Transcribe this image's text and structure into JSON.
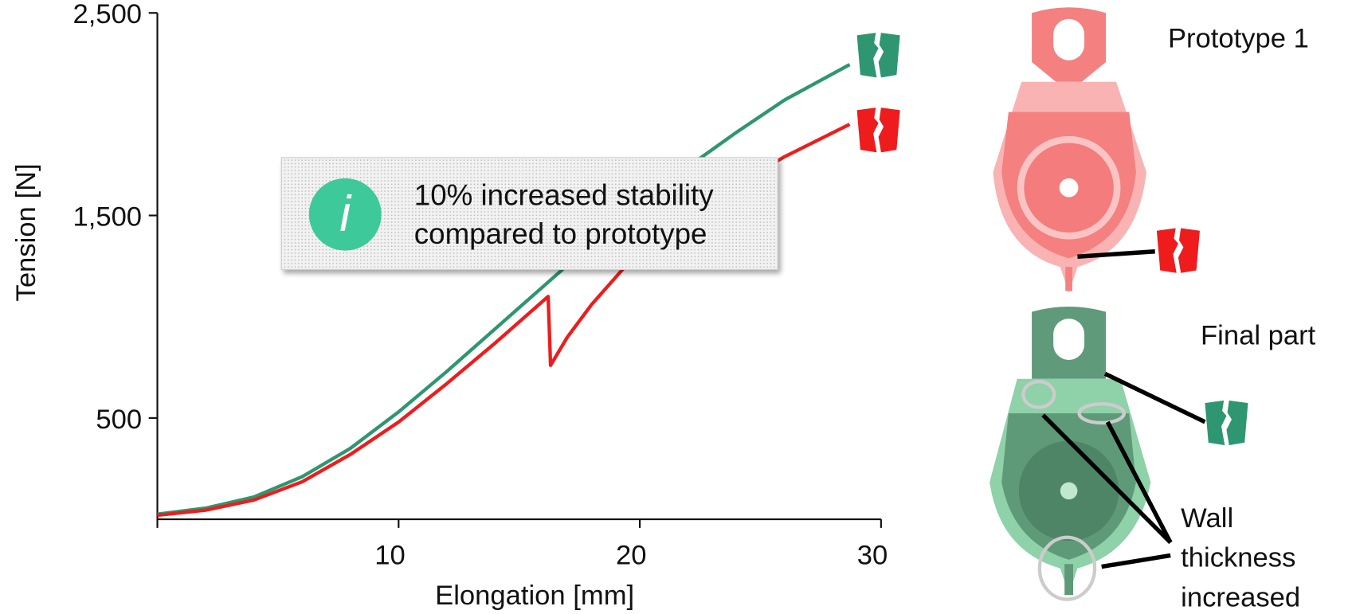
{
  "chart_data": {
    "type": "line",
    "xlabel": "Elongation [mm]",
    "ylabel": "Tension [N]",
    "xlim": [
      0,
      30
    ],
    "ylim": [
      0,
      2500
    ],
    "xticks": [
      10,
      20,
      30
    ],
    "yticks": [
      {
        "value": 2500,
        "label": "2,500"
      },
      {
        "value": 1500,
        "label": "1,500"
      },
      500
    ],
    "series": [
      {
        "color": "#2e9670",
        "x": [
          0,
          2,
          4,
          6,
          8,
          10,
          12,
          14,
          16,
          18,
          20,
          22,
          24,
          26,
          28.7
        ],
        "values": [
          25,
          55,
          110,
          210,
          350,
          530,
          730,
          940,
          1150,
          1360,
          1560,
          1740,
          1910,
          2070,
          2245
        ]
      },
      {
        "color": "#ee1c1c",
        "x": [
          0,
          2,
          4,
          6,
          8,
          10,
          12,
          14,
          16.2,
          16.3,
          17,
          18,
          20,
          22,
          24,
          26,
          28.7
        ],
        "values": [
          20,
          45,
          95,
          185,
          320,
          480,
          670,
          870,
          1100,
          760,
          900,
          1060,
          1330,
          1500,
          1650,
          1790,
          1950
        ]
      }
    ],
    "annotation": [
      "10% increased stability",
      "compared to prototype"
    ]
  },
  "panels": {
    "prototype": "Prototype 1",
    "final": "Final part",
    "wall_note": [
      "Wall",
      "thickness",
      "increased"
    ]
  }
}
